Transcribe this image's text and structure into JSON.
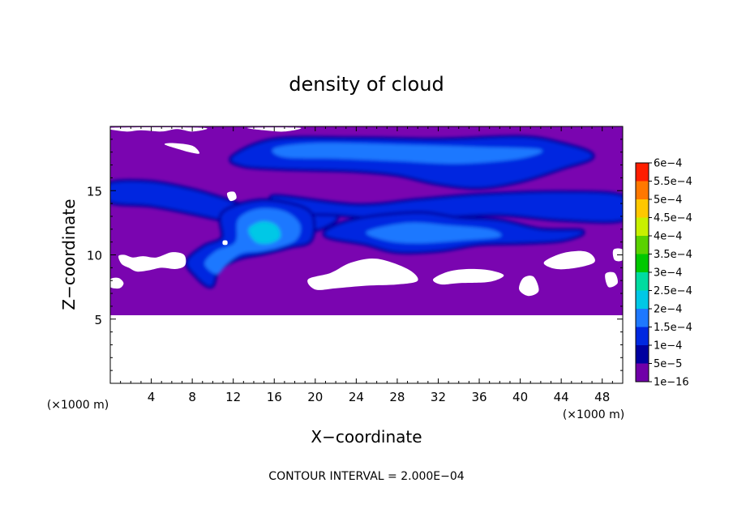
{
  "chart_data": {
    "type": "heatmap",
    "title": "density of cloud",
    "xlabel": "X−coordinate",
    "ylabel": "Z−coordinate",
    "x_unit": "(×1000 m)",
    "y_unit": "(×1000 m)",
    "xlim": [
      0,
      50
    ],
    "ylim": [
      0,
      20
    ],
    "x_ticks": [
      4,
      8,
      12,
      16,
      20,
      24,
      28,
      32,
      36,
      40,
      44,
      48
    ],
    "x_tick_labels": [
      "4",
      "8",
      "12",
      "16",
      "20",
      "24",
      "28",
      "32",
      "36",
      "40",
      "44",
      "48"
    ],
    "y_ticks": [
      5,
      10,
      15
    ],
    "y_tick_labels": [
      "5",
      "10",
      "15"
    ],
    "note": "CONTOUR INTERVAL = 2.000E−04",
    "colorbar": {
      "levels": [
        {
          "label": "1e−16",
          "value": 1e-16,
          "color": "#7000a8"
        },
        {
          "label": "5e−5",
          "value": 5e-05,
          "color": "#0000a0"
        },
        {
          "label": "1e−4",
          "value": 0.0001,
          "color": "#0028e0"
        },
        {
          "label": "1.5e−4",
          "value": 0.00015,
          "color": "#1e78ff"
        },
        {
          "label": "2e−4",
          "value": 0.0002,
          "color": "#00c8e6"
        },
        {
          "label": "2.5e−4",
          "value": 0.00025,
          "color": "#00dca0"
        },
        {
          "label": "3e−4",
          "value": 0.0003,
          "color": "#00c800"
        },
        {
          "label": "3.5e−4",
          "value": 0.00035,
          "color": "#5ad200"
        },
        {
          "label": "4e−4",
          "value": 0.0004,
          "color": "#c8f000"
        },
        {
          "label": "4.5e−4",
          "value": 0.00045,
          "color": "#ffc800"
        },
        {
          "label": "5e−4",
          "value": 0.0005,
          "color": "#ff7800"
        },
        {
          "label": "5.5e−4",
          "value": 0.00055,
          "color": "#ff1e00"
        },
        {
          "label": "6e−4",
          "value": 0.0006,
          "color": "#ff7878"
        }
      ]
    },
    "background_color": "#7a05b0",
    "regions": [
      {
        "name": "upper-cloud-band",
        "level": "1e−4",
        "points": [
          [
            12,
            17.6
          ],
          [
            16,
            18.9
          ],
          [
            24,
            19.0
          ],
          [
            32,
            18.9
          ],
          [
            40,
            19.1
          ],
          [
            44,
            18.6
          ],
          [
            47,
            17.7
          ],
          [
            44,
            16.8
          ],
          [
            40,
            15.8
          ],
          [
            36,
            15.3
          ],
          [
            32,
            15.6
          ],
          [
            28,
            16.3
          ],
          [
            24,
            16.6
          ],
          [
            20,
            16.7
          ],
          [
            16,
            16.8
          ],
          [
            13,
            17.0
          ]
        ]
      },
      {
        "name": "upper-cloud-band-core",
        "level": "1.5e−4",
        "points": [
          [
            16,
            18.3
          ],
          [
            20,
            18.7
          ],
          [
            28,
            18.6
          ],
          [
            36,
            18.4
          ],
          [
            42,
            18.2
          ],
          [
            40,
            17.5
          ],
          [
            34,
            17.1
          ],
          [
            28,
            17.3
          ],
          [
            22,
            17.5
          ],
          [
            17,
            17.6
          ]
        ]
      },
      {
        "name": "left-mid-band",
        "level": "1e−4",
        "points": [
          [
            0,
            15.5
          ],
          [
            4,
            15.6
          ],
          [
            8,
            15.0
          ],
          [
            11,
            14.3
          ],
          [
            14,
            13.6
          ],
          [
            18,
            13.4
          ],
          [
            22,
            13.0
          ],
          [
            20,
            12.0
          ],
          [
            16,
            12.0
          ],
          [
            12,
            12.6
          ],
          [
            8,
            13.3
          ],
          [
            4,
            13.9
          ],
          [
            0,
            14.2
          ]
        ]
      },
      {
        "name": "mid-right-band",
        "level": "1e−4",
        "points": [
          [
            16,
            14.5
          ],
          [
            24,
            13.8
          ],
          [
            30,
            14.2
          ],
          [
            36,
            14.6
          ],
          [
            44,
            14.8
          ],
          [
            50,
            14.5
          ],
          [
            50,
            12.8
          ],
          [
            44,
            12.8
          ],
          [
            38,
            13.2
          ],
          [
            32,
            13.0
          ],
          [
            27,
            12.9
          ],
          [
            22,
            13.2
          ],
          [
            18,
            13.4
          ]
        ]
      },
      {
        "name": "lower-right-cloud",
        "level": "1e−4",
        "points": [
          [
            21,
            11.6
          ],
          [
            24,
            12.7
          ],
          [
            30,
            13.2
          ],
          [
            34,
            12.8
          ],
          [
            38,
            12.6
          ],
          [
            42,
            11.9
          ],
          [
            46,
            11.8
          ],
          [
            44,
            11.2
          ],
          [
            40,
            11.0
          ],
          [
            36,
            10.9
          ],
          [
            32,
            10.4
          ],
          [
            28,
            10.3
          ],
          [
            25,
            10.9
          ]
        ]
      },
      {
        "name": "lower-right-cloud-core",
        "level": "1.5e−4",
        "points": [
          [
            25,
            11.8
          ],
          [
            29,
            12.5
          ],
          [
            33,
            12.3
          ],
          [
            37,
            12.0
          ],
          [
            38,
            11.4
          ],
          [
            34,
            11.1
          ],
          [
            30,
            10.9
          ],
          [
            27,
            11.1
          ]
        ]
      },
      {
        "name": "convective-cell",
        "level": "1e−4",
        "points": [
          [
            11,
            13.2
          ],
          [
            14,
            14.1
          ],
          [
            17,
            14.0
          ],
          [
            19.5,
            13.2
          ],
          [
            19.5,
            11.2
          ],
          [
            17.5,
            10.7
          ],
          [
            15,
            10.2
          ],
          [
            12.5,
            9.8
          ],
          [
            10.5,
            8.9
          ],
          [
            9.8,
            7.6
          ],
          [
            8.3,
            8.5
          ],
          [
            7.6,
            9.5
          ],
          [
            9.2,
            10.6
          ],
          [
            11,
            11.3
          ]
        ]
      },
      {
        "name": "convective-cell-core",
        "level": "1.5e−4",
        "points": [
          [
            12.5,
            12.8
          ],
          [
            14.5,
            13.6
          ],
          [
            17,
            13.4
          ],
          [
            18.5,
            12.4
          ],
          [
            18.2,
            11.2
          ],
          [
            16.5,
            10.6
          ],
          [
            14.8,
            10.3
          ],
          [
            12.8,
            10.1
          ],
          [
            11.4,
            9.3
          ],
          [
            10.4,
            8.5
          ],
          [
            9.2,
            9.3
          ],
          [
            10.3,
            10.3
          ],
          [
            12.2,
            11.0
          ]
        ]
      },
      {
        "name": "convective-cell-peak",
        "level": "2e−4",
        "points": [
          [
            13.5,
            12.0
          ],
          [
            14.8,
            12.6
          ],
          [
            16.2,
            12.3
          ],
          [
            16.6,
            11.4
          ],
          [
            15.6,
            10.9
          ],
          [
            14.2,
            11.0
          ]
        ]
      }
    ],
    "no_data_regions": [
      {
        "name": "lower-empty-area",
        "points": [
          [
            0,
            5.3
          ],
          [
            50,
            5.3
          ],
          [
            50,
            0
          ],
          [
            0,
            0
          ]
        ]
      },
      {
        "name": "top-gap-left",
        "points": [
          [
            0,
            19.9
          ],
          [
            1.5,
            19.6
          ],
          [
            3,
            19.7
          ],
          [
            5,
            19.6
          ],
          [
            6.5,
            19.8
          ],
          [
            8,
            19.6
          ],
          [
            9,
            19.9
          ]
        ]
      },
      {
        "name": "top-gap-mid",
        "points": [
          [
            13.5,
            19.9
          ],
          [
            15,
            19.7
          ],
          [
            17,
            19.6
          ],
          [
            18.5,
            19.9
          ]
        ]
      },
      {
        "name": "upper-left-hole",
        "points": [
          [
            5.3,
            18.6
          ],
          [
            6.2,
            18.7
          ],
          [
            8,
            18.5
          ],
          [
            8.7,
            17.9
          ],
          [
            7.7,
            18.0
          ],
          [
            6.8,
            18.2
          ]
        ]
      },
      {
        "name": "small-hole-a",
        "points": [
          [
            11.4,
            14.8
          ],
          [
            12.1,
            14.9
          ],
          [
            12.3,
            14.4
          ],
          [
            11.7,
            14.2
          ]
        ]
      },
      {
        "name": "small-hole-b",
        "points": [
          [
            11,
            11.1
          ],
          [
            11.4,
            11.1
          ],
          [
            11.4,
            10.8
          ],
          [
            11,
            10.8
          ]
        ]
      },
      {
        "name": "left-holes",
        "points": [
          [
            0.8,
            9.9
          ],
          [
            1.4,
            10.0
          ],
          [
            2.2,
            9.8
          ],
          [
            3.2,
            9.9
          ],
          [
            4.5,
            9.8
          ],
          [
            6,
            10.2
          ],
          [
            7.2,
            10.0
          ],
          [
            7.3,
            9.2
          ],
          [
            6.4,
            8.9
          ],
          [
            5,
            9.0
          ],
          [
            3.8,
            8.8
          ],
          [
            2.6,
            8.7
          ],
          [
            1.8,
            9.0
          ],
          [
            1.1,
            9.3
          ]
        ]
      },
      {
        "name": "left-holes-b",
        "points": [
          [
            0,
            8.1
          ],
          [
            0.8,
            8.2
          ],
          [
            1.3,
            7.8
          ],
          [
            0.9,
            7.4
          ],
          [
            0,
            7.5
          ]
        ]
      },
      {
        "name": "center-hole",
        "points": [
          [
            19.3,
            8.1
          ],
          [
            21.5,
            8.6
          ],
          [
            23.5,
            9.4
          ],
          [
            26,
            9.7
          ],
          [
            29,
            8.9
          ],
          [
            30,
            8.0
          ],
          [
            28,
            7.7
          ],
          [
            25,
            7.6
          ],
          [
            22,
            7.4
          ],
          [
            20,
            7.3
          ]
        ]
      },
      {
        "name": "right-hole-a",
        "points": [
          [
            42.3,
            9.4
          ],
          [
            44,
            10.1
          ],
          [
            46,
            10.3
          ],
          [
            47,
            10.0
          ],
          [
            47.2,
            9.4
          ],
          [
            45.5,
            9.0
          ],
          [
            43.5,
            8.9
          ]
        ]
      },
      {
        "name": "right-hole-b",
        "points": [
          [
            31.5,
            8.1
          ],
          [
            33,
            8.7
          ],
          [
            35,
            8.9
          ],
          [
            37,
            8.8
          ],
          [
            38.4,
            8.4
          ],
          [
            37,
            7.9
          ],
          [
            34,
            7.8
          ],
          [
            32.3,
            7.7
          ]
        ]
      },
      {
        "name": "right-hole-c",
        "points": [
          [
            40.3,
            8.2
          ],
          [
            41.3,
            8.3
          ],
          [
            41.8,
            7.2
          ],
          [
            40.8,
            6.8
          ],
          [
            39.9,
            7.3
          ]
        ]
      },
      {
        "name": "right-hole-d",
        "points": [
          [
            48.3,
            8.5
          ],
          [
            49.2,
            8.6
          ],
          [
            49.5,
            7.8
          ],
          [
            48.6,
            7.5
          ]
        ]
      },
      {
        "name": "right-hole-e",
        "points": [
          [
            49.1,
            10.4
          ],
          [
            50,
            10.4
          ],
          [
            50,
            9.6
          ],
          [
            49.2,
            9.6
          ]
        ]
      }
    ]
  }
}
